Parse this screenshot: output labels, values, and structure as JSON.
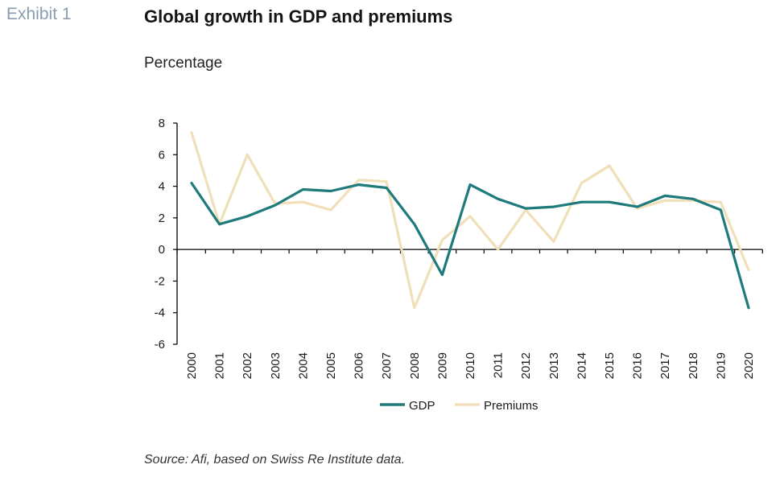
{
  "header": {
    "exhibit_label": "Exhibit 1",
    "title": "Global growth in GDP and premiums",
    "subtitle": "Percentage"
  },
  "footer": {
    "source": "Source: Afi, based on Swiss Re Institute data."
  },
  "colors": {
    "gdp": "#1f7a7c",
    "premiums": "#f0dfb8",
    "axis": "#000000"
  },
  "chart_data": {
    "type": "line",
    "title": "Global growth in GDP and premiums",
    "ylabel": "Percentage",
    "xlabel": "",
    "ylim": [
      -6,
      8
    ],
    "yticks": [
      8,
      6,
      4,
      2,
      0,
      -2,
      -4,
      -6
    ],
    "grid": false,
    "legend": "bottom-center",
    "x": [
      "2000",
      "2001",
      "2002",
      "2003",
      "2004",
      "2005",
      "2006",
      "2007",
      "2008",
      "2009",
      "2010",
      "2011",
      "2012",
      "2013",
      "2014",
      "2015",
      "2016",
      "2017",
      "2018",
      "2019",
      "2020"
    ],
    "series": [
      {
        "name": "GDP",
        "color": "#1f7a7c",
        "values": [
          4.2,
          1.6,
          2.1,
          2.8,
          3.8,
          3.7,
          4.1,
          3.9,
          1.6,
          -1.6,
          4.1,
          3.2,
          2.6,
          2.7,
          3.0,
          3.0,
          2.7,
          3.4,
          3.2,
          2.5,
          -3.7
        ]
      },
      {
        "name": "Premiums",
        "color": "#f0dfb8",
        "values": [
          7.4,
          1.6,
          6.0,
          2.9,
          3.0,
          2.5,
          4.4,
          4.3,
          -3.7,
          0.6,
          2.1,
          0.0,
          2.5,
          0.5,
          4.2,
          5.3,
          2.6,
          3.1,
          3.1,
          3.0,
          -1.3
        ]
      }
    ]
  }
}
